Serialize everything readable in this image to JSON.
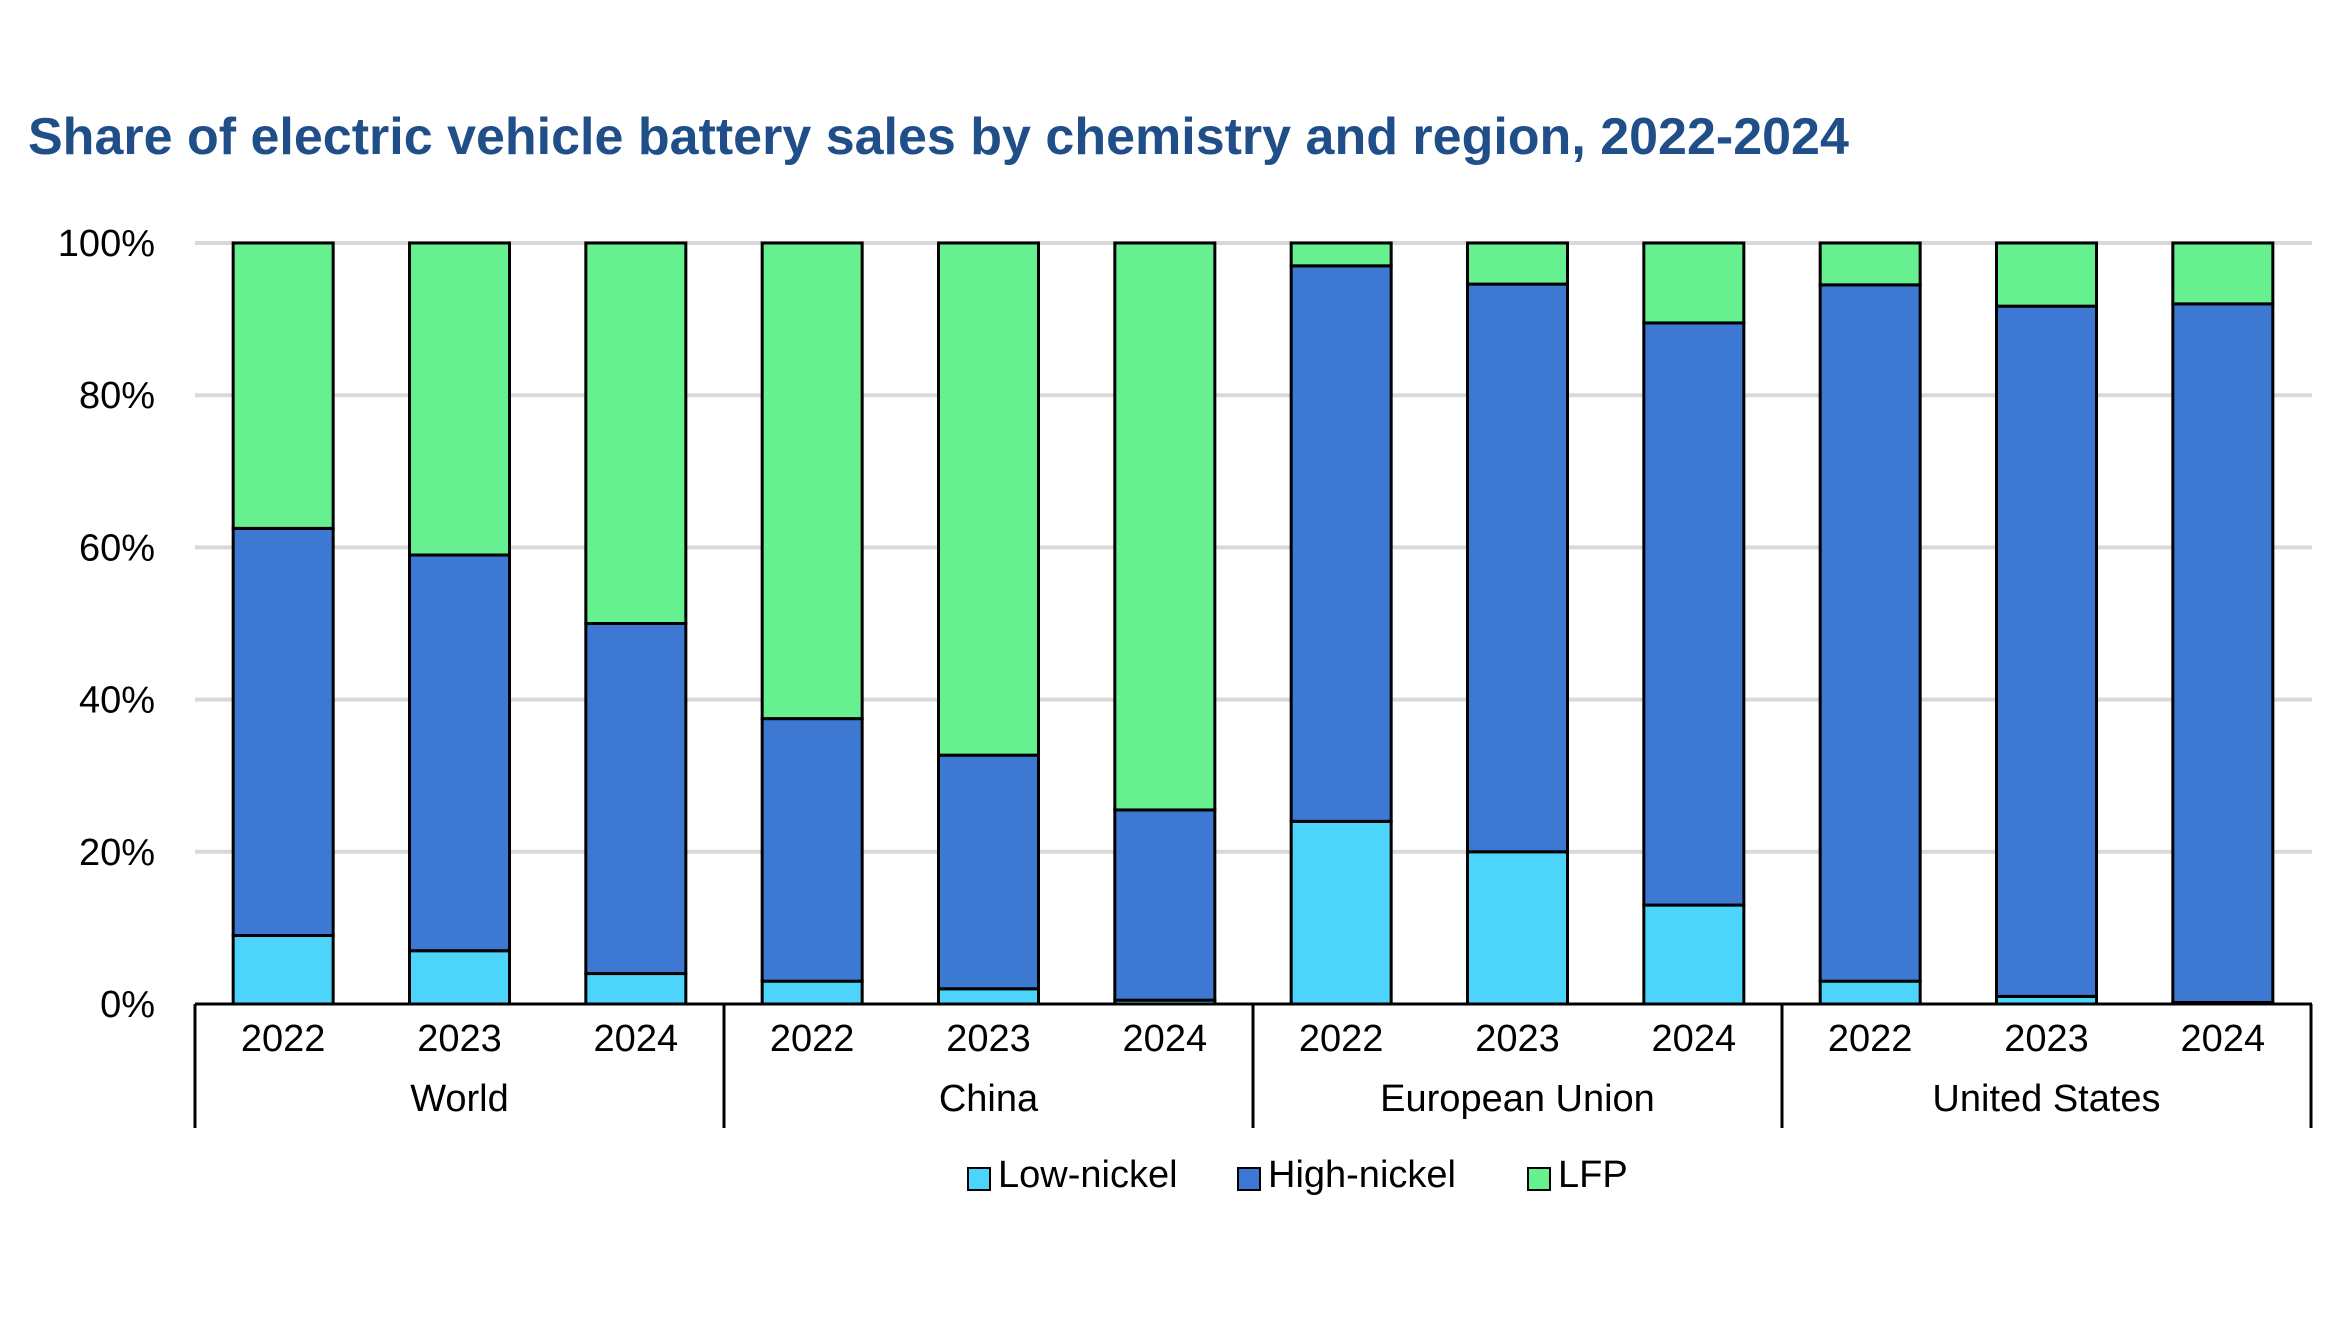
{
  "chart_data": {
    "type": "bar",
    "stacked": true,
    "title": "Share of electric vehicle battery sales by chemistry and region, 2022-2024",
    "xlabel": "",
    "ylabel": "",
    "ylim": [
      0,
      100
    ],
    "yticks": [
      "0%",
      "20%",
      "40%",
      "60%",
      "80%",
      "100%"
    ],
    "grid": true,
    "legend_position": "bottom",
    "groups": [
      {
        "name": "World",
        "categories": [
          "2022",
          "2023",
          "2024"
        ]
      },
      {
        "name": "China",
        "categories": [
          "2022",
          "2023",
          "2024"
        ]
      },
      {
        "name": "European Union",
        "categories": [
          "2022",
          "2023",
          "2024"
        ]
      },
      {
        "name": "United States",
        "categories": [
          "2022",
          "2023",
          "2024"
        ]
      }
    ],
    "categories": [
      "2022",
      "2023",
      "2024",
      "2022",
      "2023",
      "2024",
      "2022",
      "2023",
      "2024",
      "2022",
      "2023",
      "2024"
    ],
    "series": [
      {
        "name": "Low-nickel",
        "color": "#4dd4fa",
        "values": [
          9,
          7,
          4,
          3,
          2,
          0.5,
          24,
          20,
          13,
          3,
          1,
          0.2
        ]
      },
      {
        "name": "High-nickel",
        "color": "#3d78d3",
        "values": [
          53.5,
          52,
          46,
          34.5,
          30.7,
          25,
          73,
          74.6,
          76.5,
          91.5,
          90.7,
          91.8
        ]
      },
      {
        "name": "LFP",
        "color": "#66f08f",
        "values": [
          37.5,
          41,
          50,
          62.5,
          67.3,
          74.5,
          3,
          5.4,
          10.5,
          5.5,
          8.3,
          8
        ]
      }
    ]
  }
}
